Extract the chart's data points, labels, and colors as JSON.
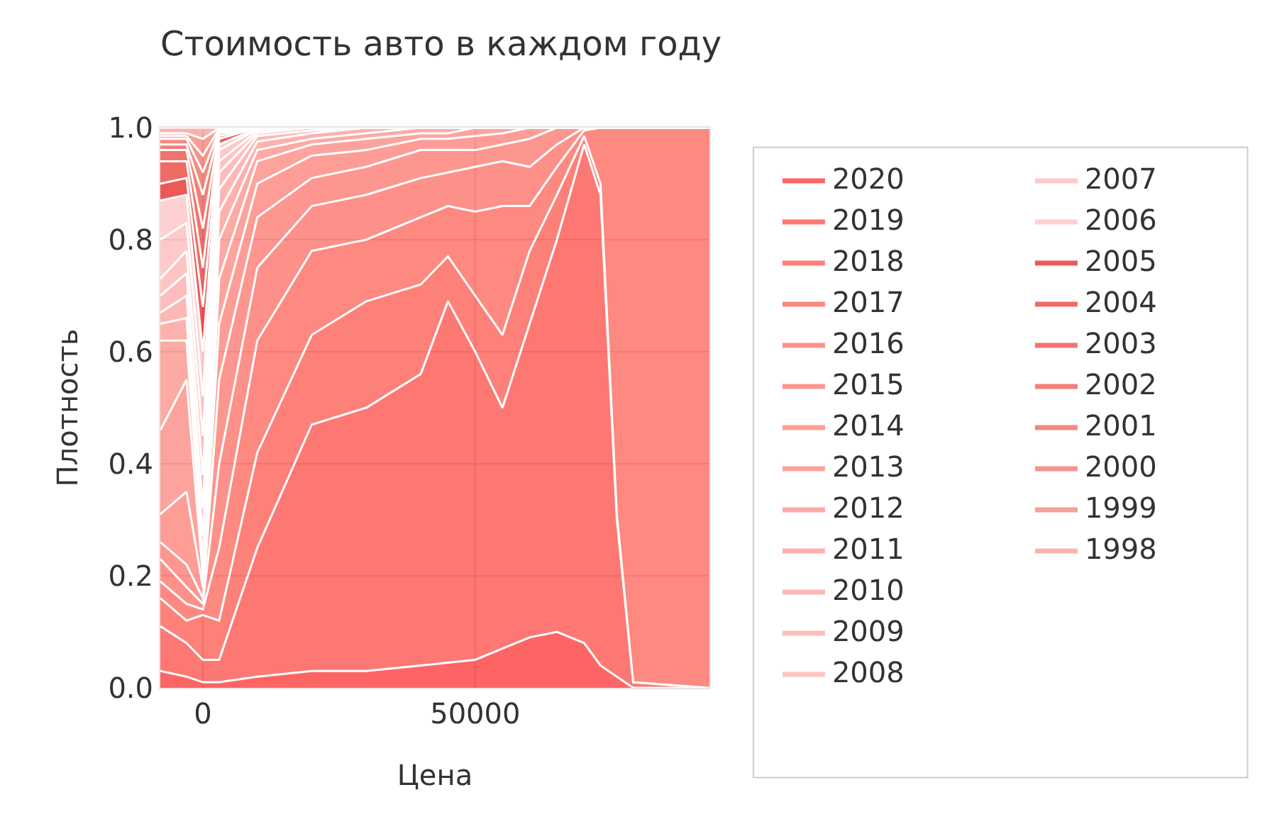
{
  "chart_data": {
    "type": "area",
    "stacked": true,
    "title": "Стоимость авто в каждом году",
    "xlabel": "Цена",
    "ylabel": "Плотность",
    "x": [
      -7800,
      -3000,
      0,
      3000,
      10000,
      20000,
      30000,
      40000,
      45000,
      50000,
      55000,
      60000,
      65000,
      70000,
      73000,
      76000,
      79000,
      93000
    ],
    "xlim": [
      -7800,
      93000
    ],
    "xticks": [
      0,
      50000
    ],
    "ylim": [
      0,
      1
    ],
    "yticks": [
      {
        "value": 0,
        "label": "0.0"
      },
      0.2,
      0.4,
      0.6,
      0.8,
      {
        "value": 1,
        "label": "1.0"
      }
    ],
    "grid": true,
    "legend": "right",
    "series": [
      {
        "name": "2020",
        "color": "#fd3f3f",
        "values": [
          0.03,
          0.02,
          0.01,
          0.01,
          0.02,
          0.03,
          0.03,
          0.04,
          0.045,
          0.05,
          0.07,
          0.09,
          0.1,
          0.08,
          0.04,
          0.02,
          0,
          0
        ]
      },
      {
        "name": "2019",
        "color": "#fd5650",
        "values": [
          0.08,
          0.06,
          0.04,
          0.04,
          0.23,
          0.44,
          0.47,
          0.52,
          0.645,
          0.55,
          0.43,
          0.56,
          0.7,
          0.89,
          0.84,
          0.28,
          0.01,
          0
        ]
      },
      {
        "name": "2018",
        "color": "#fd6157",
        "values": [
          0.05,
          0.04,
          0.08,
          0.07,
          0.17,
          0.16,
          0.19,
          0.16,
          0.08,
          0.1,
          0.13,
          0.13,
          0.08,
          0.015,
          0.02,
          0.01,
          0,
          0
        ]
      },
      {
        "name": "2017",
        "color": "#fd6c62",
        "values": [
          0.03,
          0.03,
          0.01,
          0.13,
          0.2,
          0.15,
          0.11,
          0.12,
          0.09,
          0.15,
          0.23,
          0.08,
          0.05,
          0.01,
          0.1,
          0.69,
          0.99,
          1
        ]
      },
      {
        "name": "2016",
        "color": "#fd766b",
        "values": [
          0.04,
          0.03,
          0.01,
          0.15,
          0.13,
          0.08,
          0.08,
          0.07,
          0.06,
          0.08,
          0.08,
          0.07,
          0.04,
          0.005,
          0,
          0,
          0,
          0
        ]
      },
      {
        "name": "2015",
        "color": "#fd7c73",
        "values": [
          0.03,
          0.04,
          0.01,
          0.15,
          0.09,
          0.05,
          0.05,
          0.05,
          0.04,
          0.03,
          0.03,
          0.05,
          0.03,
          0,
          0,
          0,
          0,
          0
        ]
      },
      {
        "name": "2014",
        "color": "#fd847c",
        "values": [
          0.05,
          0.13,
          0.02,
          0.1,
          0.06,
          0.04,
          0.03,
          0.02,
          0.02,
          0.025,
          0.02,
          0.02,
          0,
          0,
          0,
          0,
          0,
          0
        ]
      },
      {
        "name": "2013",
        "color": "#fd8c85",
        "values": [
          0.15,
          0.2,
          0.02,
          0.08,
          0.04,
          0.02,
          0.02,
          0.01,
          0.01,
          0.015,
          0.01,
          0,
          0,
          0,
          0,
          0,
          0,
          0
        ]
      },
      {
        "name": "2012",
        "color": "#fd948d",
        "values": [
          0.16,
          0.07,
          0.03,
          0.07,
          0.02,
          0.01,
          0.01,
          0.01,
          0.01,
          0,
          0,
          0,
          0,
          0,
          0,
          0,
          0,
          0
        ]
      },
      {
        "name": "2011",
        "color": "#fd9d98",
        "values": [
          0.03,
          0.04,
          0.04,
          0.05,
          0.015,
          0.01,
          0.01,
          0,
          0,
          0,
          0,
          0,
          0,
          0,
          0,
          0,
          0,
          0
        ]
      },
      {
        "name": "2010",
        "color": "#fda5a2",
        "values": [
          0.02,
          0.04,
          0.05,
          0.04,
          0.01,
          0.005,
          0,
          0,
          0,
          0,
          0,
          0,
          0,
          0,
          0,
          0,
          0,
          0
        ]
      },
      {
        "name": "2009",
        "color": "#fdadab",
        "values": [
          0.03,
          0.04,
          0.06,
          0.03,
          0.005,
          0.005,
          0,
          0,
          0,
          0,
          0,
          0,
          0,
          0,
          0,
          0,
          0,
          0
        ]
      },
      {
        "name": "2008",
        "color": "#fdb6b3",
        "values": [
          0.03,
          0.04,
          0.07,
          0.02,
          0.004,
          0,
          0,
          0,
          0,
          0,
          0,
          0,
          0,
          0,
          0,
          0,
          0,
          0
        ]
      },
      {
        "name": "2007",
        "color": "#fdbcbb",
        "values": [
          0.07,
          0.05,
          0.07,
          0.02,
          0.003,
          0,
          0,
          0,
          0,
          0,
          0,
          0,
          0,
          0,
          0,
          0,
          0,
          0
        ]
      },
      {
        "name": "2006",
        "color": "#fdc5c5",
        "values": [
          0.07,
          0.05,
          0.08,
          0.01,
          0.002,
          0,
          0,
          0,
          0,
          0,
          0,
          0,
          0,
          0,
          0,
          0,
          0,
          0
        ]
      },
      {
        "name": "2005",
        "color": "#e83030",
        "values": [
          0.03,
          0.03,
          0.08,
          0.01,
          0.001,
          0,
          0,
          0,
          0,
          0,
          0,
          0,
          0,
          0,
          0,
          0,
          0,
          0
        ]
      },
      {
        "name": "2004",
        "color": "#ea4640",
        "values": [
          0.04,
          0.03,
          0.07,
          0.005,
          0,
          0,
          0,
          0,
          0,
          0,
          0,
          0,
          0,
          0,
          0,
          0,
          0,
          0
        ]
      },
      {
        "name": "2003",
        "color": "#ec534a",
        "values": [
          0.02,
          0.02,
          0.07,
          0.005,
          0,
          0,
          0,
          0,
          0,
          0,
          0,
          0,
          0,
          0,
          0,
          0,
          0,
          0
        ]
      },
      {
        "name": "2002",
        "color": "#ee6056",
        "values": [
          0.01,
          0.01,
          0.06,
          0.003,
          0,
          0,
          0,
          0,
          0,
          0,
          0,
          0,
          0,
          0,
          0,
          0,
          0,
          0
        ]
      },
      {
        "name": "2001",
        "color": "#f06c62",
        "values": [
          0.01,
          0.01,
          0.04,
          0.003,
          0,
          0,
          0,
          0,
          0,
          0,
          0,
          0,
          0,
          0,
          0,
          0,
          0,
          0
        ]
      },
      {
        "name": "2000",
        "color": "#f2786e",
        "values": [
          0.005,
          0.005,
          0.03,
          0.002,
          0,
          0,
          0,
          0,
          0,
          0,
          0,
          0,
          0,
          0,
          0,
          0,
          0,
          0
        ]
      },
      {
        "name": "1999",
        "color": "#f4867d",
        "values": [
          0.005,
          0.005,
          0.03,
          0.001,
          0,
          0,
          0,
          0,
          0,
          0,
          0,
          0,
          0,
          0,
          0,
          0,
          0,
          0
        ]
      },
      {
        "name": "1998",
        "color": "#f6a09a",
        "values": [
          0.01,
          0.01,
          0.02,
          0.001,
          0,
          0,
          0,
          0,
          0,
          0,
          0,
          0,
          0,
          0,
          0,
          0,
          0,
          0
        ]
      }
    ]
  }
}
